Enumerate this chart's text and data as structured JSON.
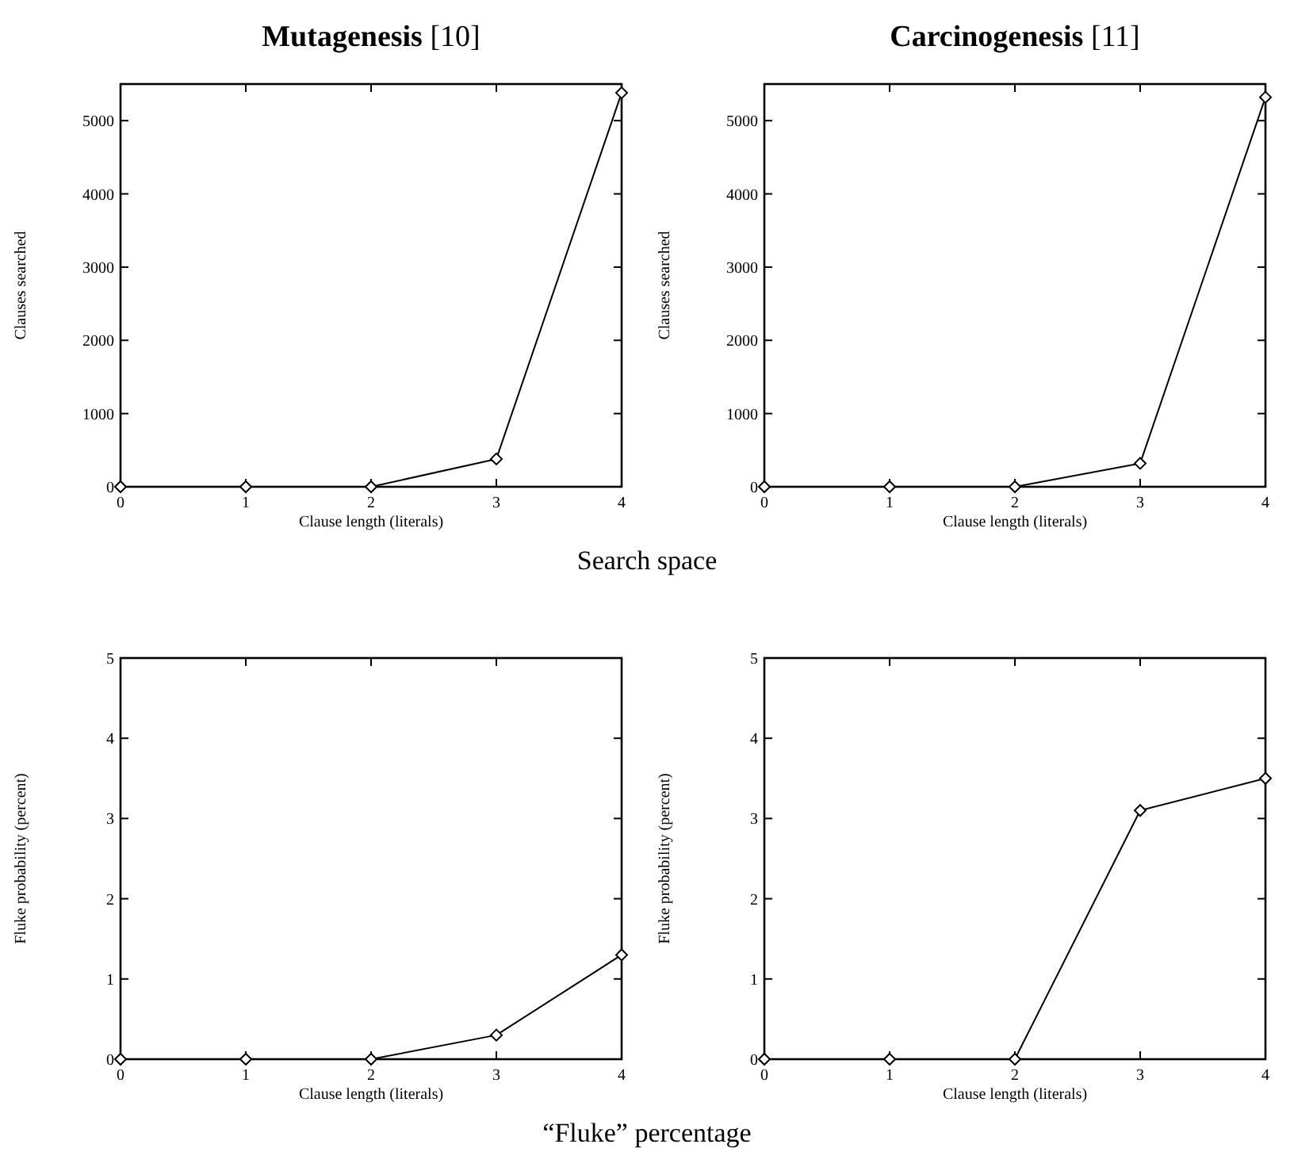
{
  "chart_data": [
    {
      "type": "line",
      "title": "Mutagenesis [10]",
      "xlabel": "Clause length (literals)",
      "ylabel": "Clauses searched",
      "x": [
        0,
        1,
        2,
        3,
        4
      ],
      "xlim": [
        0,
        4
      ],
      "xticks": [
        0,
        1,
        2,
        3,
        4
      ],
      "ylim": [
        0,
        5500
      ],
      "yticks": [
        0,
        1000,
        2000,
        3000,
        4000,
        5000
      ],
      "marker": "diamond",
      "line_style": "solid",
      "annotations": [
        "Search space"
      ],
      "series": [
        {
          "color": "#000000",
          "values": [
            0,
            0,
            0,
            380,
            5380
          ]
        }
      ]
    },
    {
      "type": "line",
      "title": "Carcinogenesis [11]",
      "xlabel": "Clause length (literals)",
      "ylabel": "Clauses searched",
      "x": [
        0,
        1,
        2,
        3,
        4
      ],
      "xlim": [
        0,
        4
      ],
      "xticks": [
        0,
        1,
        2,
        3,
        4
      ],
      "ylim": [
        0,
        5500
      ],
      "yticks": [
        0,
        1000,
        2000,
        3000,
        4000,
        5000
      ],
      "marker": "diamond",
      "line_style": "solid",
      "series": [
        {
          "color": "#000000",
          "values": [
            0,
            0,
            0,
            320,
            5320
          ]
        }
      ]
    },
    {
      "type": "line",
      "xlabel": "Clause length (literals)",
      "ylabel": "Fluke probability (percent)",
      "x": [
        0,
        1,
        2,
        3,
        4
      ],
      "xlim": [
        0,
        4
      ],
      "xticks": [
        0,
        1,
        2,
        3,
        4
      ],
      "ylim": [
        0,
        5
      ],
      "yticks": [
        0,
        1,
        2,
        3,
        4,
        5
      ],
      "marker": "diamond",
      "line_style": "solid",
      "annotations": [
        "“Fluke” percentage"
      ],
      "series": [
        {
          "color": "#000000",
          "values": [
            0,
            0,
            0,
            0.3,
            1.3
          ]
        }
      ]
    },
    {
      "type": "line",
      "xlabel": "Clause length (literals)",
      "ylabel": "Fluke probability (percent)",
      "x": [
        0,
        1,
        2,
        3,
        4
      ],
      "xlim": [
        0,
        4
      ],
      "xticks": [
        0,
        1,
        2,
        3,
        4
      ],
      "ylim": [
        0,
        5
      ],
      "yticks": [
        0,
        1,
        2,
        3,
        4,
        5
      ],
      "marker": "diamond",
      "line_style": "solid",
      "series": [
        {
          "color": "#000000",
          "values": [
            0,
            0,
            0,
            3.1,
            3.5
          ]
        }
      ]
    }
  ]
}
